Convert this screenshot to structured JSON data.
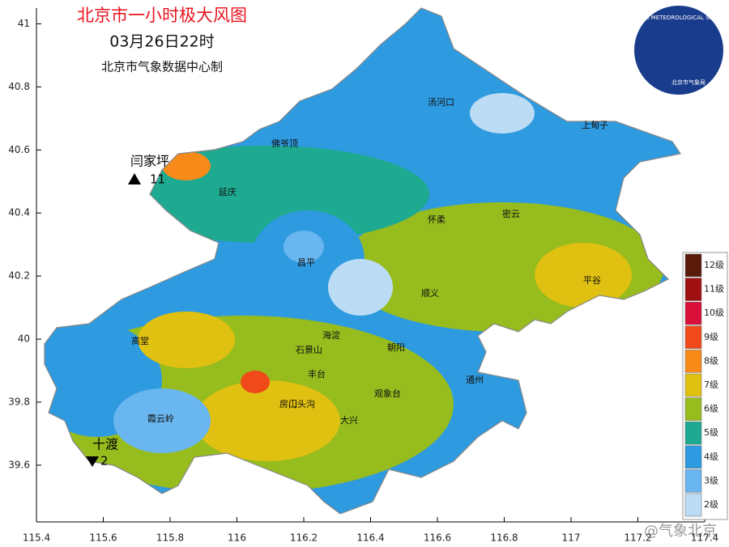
{
  "header": {
    "title": "北京市一小时极大风图",
    "time": "03月26日22时",
    "source": "北京市气象数据中心制"
  },
  "logo": {
    "text": "BEIJING METEOROLOGICAL SERVICE",
    "caption": "北京市气象局"
  },
  "watermark": "@气象北京",
  "map": {
    "xlim": [
      115.4,
      117.4
    ],
    "ylim": [
      39.42,
      41.05
    ],
    "xticks": [
      115.4,
      115.6,
      115.8,
      116,
      116.2,
      116.4,
      116.6,
      116.8,
      117,
      117.2,
      117.4
    ],
    "yticks": [
      39.6,
      39.8,
      40,
      40.2,
      40.4,
      40.6,
      40.8,
      41
    ],
    "places": [
      "汤河口",
      "上甸子",
      "佛爷顶",
      "延庆",
      "怀柔",
      "密云",
      "昌平",
      "平谷",
      "顺义",
      "海淀",
      "朝阳",
      "石景山",
      "丰台",
      "门头沟",
      "霞云岭",
      "房山",
      "大兴",
      "通州",
      "观象台",
      "高堂"
    ],
    "stations": [
      {
        "name": "闫家坪",
        "value": "11"
      },
      {
        "name": "十渡",
        "value": "2"
      }
    ]
  },
  "legend": {
    "items": [
      {
        "label": "12级",
        "color": "#5a1a0a"
      },
      {
        "label": "11级",
        "color": "#a01010"
      },
      {
        "label": "10级",
        "color": "#d8103a"
      },
      {
        "label": "9级",
        "color": "#f04a1a"
      },
      {
        "label": "8级",
        "color": "#f88a1a"
      },
      {
        "label": "7级",
        "color": "#e0c010"
      },
      {
        "label": "6级",
        "color": "#96bc1e"
      },
      {
        "label": "5级",
        "color": "#1eaa90"
      },
      {
        "label": "4级",
        "color": "#2e9ae0"
      },
      {
        "label": "3级",
        "color": "#6ab6f0"
      },
      {
        "label": "2级",
        "color": "#bcdcf6"
      }
    ]
  }
}
